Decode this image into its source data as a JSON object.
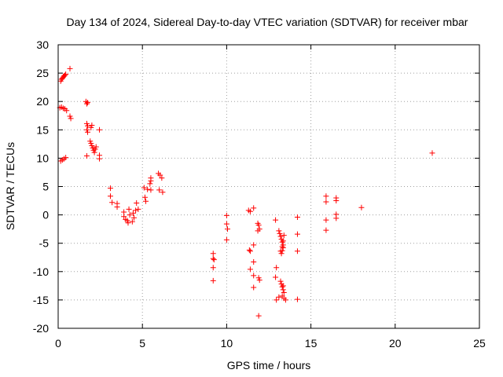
{
  "chart_data": {
    "type": "scatter",
    "title": "Day 134 of 2024, Sidereal Day-to-day VTEC variation (SDTVAR) for receiver mbar",
    "xlabel": "GPS time / hours",
    "ylabel": "SDTVAR / TECUs",
    "xlim": [
      0,
      25
    ],
    "ylim": [
      -20,
      30
    ],
    "xticks": [
      0,
      5,
      10,
      15,
      20,
      25
    ],
    "yticks": [
      -20,
      -15,
      -10,
      -5,
      0,
      5,
      10,
      15,
      20,
      25,
      30
    ],
    "grid": true,
    "marker": "+",
    "color": "#ff0000",
    "series": [
      {
        "name": "SDTVAR",
        "points": [
          [
            0.15,
            23.6
          ],
          [
            0.2,
            23.9
          ],
          [
            0.25,
            24.1
          ],
          [
            0.3,
            24.3
          ],
          [
            0.35,
            24.5
          ],
          [
            0.4,
            24.6
          ],
          [
            0.45,
            24.8
          ],
          [
            0.7,
            25.8
          ],
          [
            0.1,
            18.9
          ],
          [
            0.2,
            19.0
          ],
          [
            0.3,
            18.8
          ],
          [
            0.4,
            18.7
          ],
          [
            0.5,
            18.4
          ],
          [
            0.7,
            17.4
          ],
          [
            0.75,
            17.0
          ],
          [
            0.15,
            9.5
          ],
          [
            0.25,
            9.7
          ],
          [
            0.35,
            9.9
          ],
          [
            0.45,
            10.1
          ],
          [
            1.65,
            20.0
          ],
          [
            1.75,
            19.8
          ],
          [
            1.7,
            19.6
          ],
          [
            1.7,
            16.1
          ],
          [
            1.75,
            15.7
          ],
          [
            1.7,
            15.0
          ],
          [
            1.75,
            14.6
          ],
          [
            2.0,
            15.8
          ],
          [
            1.95,
            15.4
          ],
          [
            2.45,
            15.0
          ],
          [
            1.9,
            13.0
          ],
          [
            1.95,
            12.6
          ],
          [
            2.0,
            12.2
          ],
          [
            2.05,
            11.8
          ],
          [
            2.1,
            11.4
          ],
          [
            2.15,
            11.0
          ],
          [
            2.2,
            11.6
          ],
          [
            2.25,
            12.0
          ],
          [
            1.7,
            10.4
          ],
          [
            2.45,
            10.5
          ],
          [
            2.45,
            9.9
          ],
          [
            3.1,
            4.7
          ],
          [
            3.1,
            3.3
          ],
          [
            3.2,
            2.2
          ],
          [
            3.5,
            2.0
          ],
          [
            3.5,
            1.4
          ],
          [
            3.9,
            0.5
          ],
          [
            3.9,
            -0.3
          ],
          [
            4.0,
            -0.8
          ],
          [
            4.1,
            -1.0
          ],
          [
            4.15,
            -1.4
          ],
          [
            4.2,
            1.0
          ],
          [
            4.25,
            0.0
          ],
          [
            4.4,
            -1.2
          ],
          [
            4.45,
            0.3
          ],
          [
            4.5,
            -0.5
          ],
          [
            4.6,
            0.8
          ],
          [
            4.65,
            2.1
          ],
          [
            4.75,
            1.0
          ],
          [
            5.1,
            4.8
          ],
          [
            5.15,
            3.1
          ],
          [
            5.2,
            2.4
          ],
          [
            5.3,
            4.5
          ],
          [
            5.45,
            5.5
          ],
          [
            5.5,
            6.0
          ],
          [
            5.5,
            6.5
          ],
          [
            5.5,
            4.4
          ],
          [
            5.95,
            7.3
          ],
          [
            6.05,
            7.0
          ],
          [
            6.15,
            6.5
          ],
          [
            6.0,
            4.4
          ],
          [
            6.2,
            4.0
          ],
          [
            9.2,
            -6.8
          ],
          [
            9.2,
            -7.7
          ],
          [
            9.25,
            -7.9
          ],
          [
            9.2,
            -9.3
          ],
          [
            9.2,
            -11.6
          ],
          [
            10.0,
            -0.1
          ],
          [
            10.0,
            -1.6
          ],
          [
            10.05,
            -2.5
          ],
          [
            10.0,
            -4.4
          ],
          [
            11.3,
            0.8
          ],
          [
            11.4,
            0.6
          ],
          [
            11.6,
            1.2
          ],
          [
            11.35,
            -6.2
          ],
          [
            11.4,
            -6.4
          ],
          [
            11.6,
            -5.3
          ],
          [
            11.6,
            -8.3
          ],
          [
            11.4,
            -9.6
          ],
          [
            11.6,
            -10.7
          ],
          [
            11.6,
            -12.8
          ],
          [
            11.85,
            -1.5
          ],
          [
            11.9,
            -1.8
          ],
          [
            11.85,
            -2.8
          ],
          [
            11.95,
            -2.5
          ],
          [
            11.9,
            -11.1
          ],
          [
            11.95,
            -11.5
          ],
          [
            11.9,
            -17.8
          ],
          [
            12.9,
            -0.9
          ],
          [
            12.95,
            -9.3
          ],
          [
            12.9,
            -11.0
          ],
          [
            12.95,
            -15.0
          ],
          [
            13.1,
            -14.5
          ],
          [
            13.1,
            -2.8
          ],
          [
            13.15,
            -3.3
          ],
          [
            13.2,
            -3.8
          ],
          [
            13.25,
            -4.3
          ],
          [
            13.3,
            -4.8
          ],
          [
            13.35,
            -5.3
          ],
          [
            13.35,
            -5.8
          ],
          [
            13.3,
            -6.3
          ],
          [
            13.25,
            -6.8
          ],
          [
            13.2,
            -6.4
          ],
          [
            13.3,
            -5.6
          ],
          [
            13.35,
            -4.6
          ],
          [
            13.4,
            -3.6
          ],
          [
            13.2,
            -11.7
          ],
          [
            13.25,
            -12.2
          ],
          [
            13.3,
            -12.7
          ],
          [
            13.35,
            -13.2
          ],
          [
            13.4,
            -13.7
          ],
          [
            13.3,
            -14.3
          ],
          [
            13.4,
            -14.7
          ],
          [
            13.5,
            -15.0
          ],
          [
            13.35,
            -12.5
          ],
          [
            14.2,
            -0.4
          ],
          [
            14.2,
            -3.4
          ],
          [
            14.2,
            -6.4
          ],
          [
            14.2,
            -14.9
          ],
          [
            15.9,
            3.3
          ],
          [
            15.9,
            2.3
          ],
          [
            15.9,
            -0.9
          ],
          [
            15.9,
            -2.7
          ],
          [
            16.5,
            3.0
          ],
          [
            16.5,
            2.5
          ],
          [
            16.5,
            0.1
          ],
          [
            16.5,
            -0.6
          ],
          [
            18.0,
            1.3
          ],
          [
            22.2,
            10.9
          ]
        ]
      }
    ]
  }
}
